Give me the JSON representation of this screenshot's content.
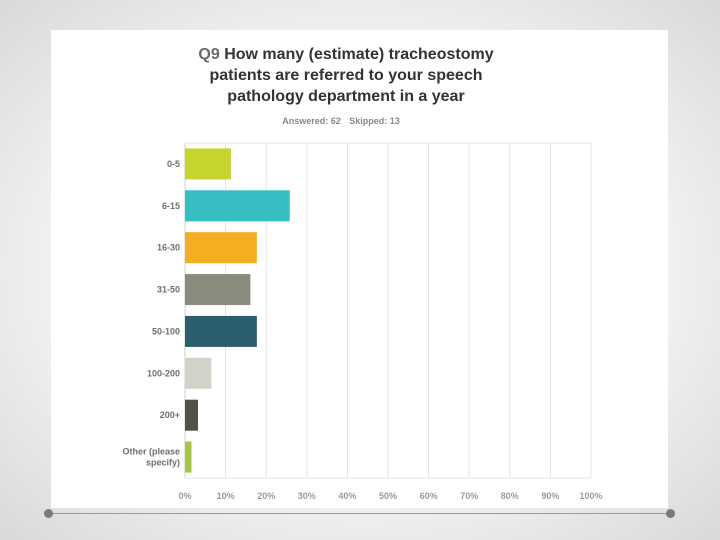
{
  "title": {
    "number": "Q9",
    "text": "How many (estimate) tracheostomy patients are referred to your speech pathology department in a year"
  },
  "stats": {
    "answered": "Answered: 62",
    "skipped": "Skipped: 13"
  },
  "chart_data": {
    "type": "bar",
    "orientation": "horizontal",
    "categories": [
      "0-5",
      "6-15",
      "16-30",
      "31-50",
      "50-100",
      "100-200",
      "200+",
      "Other (please specify)"
    ],
    "category_lines": [
      [
        "0-5"
      ],
      [
        "6-15"
      ],
      [
        "16-30"
      ],
      [
        "31-50"
      ],
      [
        "50-100"
      ],
      [
        "100-200"
      ],
      [
        "200+"
      ],
      [
        "Other (please",
        "specify)"
      ]
    ],
    "values": [
      11.3,
      25.8,
      17.7,
      16.1,
      17.7,
      6.5,
      3.2,
      1.6
    ],
    "colors": [
      "#c8d42e",
      "#34bec2",
      "#f5ae21",
      "#8b8b7d",
      "#2b5f6e",
      "#d2d2c8",
      "#4f5444",
      "#a4c545"
    ],
    "xlim": [
      0,
      100
    ],
    "xticks": [
      "0%",
      "10%",
      "20%",
      "30%",
      "40%",
      "50%",
      "60%",
      "70%",
      "80%",
      "90%",
      "100%"
    ],
    "grid": true,
    "title": "Q9 How many (estimate) tracheostomy patients are referred to your speech pathology department in a year",
    "xlabel": "",
    "ylabel": ""
  }
}
